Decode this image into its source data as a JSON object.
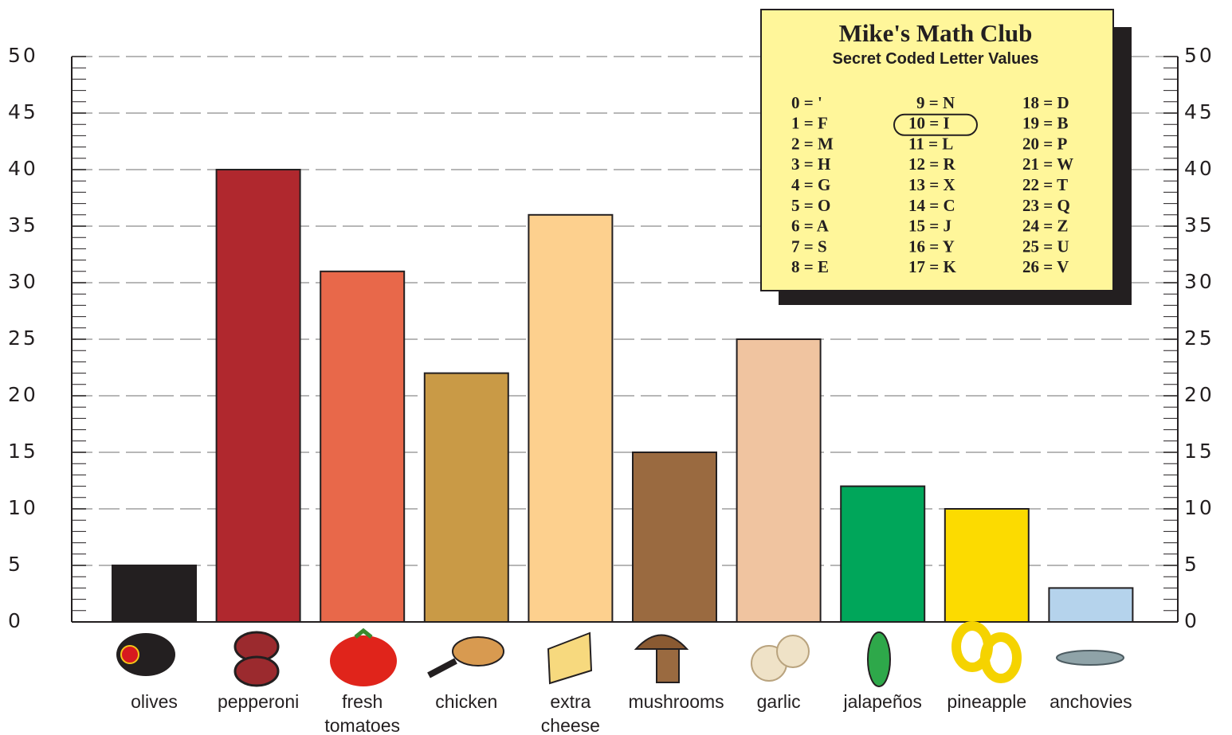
{
  "chart_data": {
    "type": "bar",
    "categories": [
      "olives",
      "pepperoni",
      "fresh tomatoes",
      "chicken",
      "extra cheese",
      "mushrooms",
      "garlic",
      "jalapeños",
      "pineapple",
      "anchovies"
    ],
    "values": [
      5,
      40,
      31,
      22,
      36,
      15,
      25,
      12,
      10,
      3
    ],
    "colors": [
      "#231f20",
      "#b0282e",
      "#e8684a",
      "#c99a46",
      "#fdd08e",
      "#9a6a40",
      "#f0c4a0",
      "#00a65a",
      "#fcdb00",
      "#b5d3ec"
    ],
    "ylim": [
      0,
      50
    ],
    "yticks": [
      0,
      5,
      10,
      15,
      20,
      25,
      30,
      35,
      40,
      45,
      50
    ],
    "grid": true,
    "key": {
      "title": "Mike's Math Club",
      "subtitle": "Secret Coded Letter Values",
      "codes": [
        "0 = '",
        "1 = F",
        "2 = M",
        "3 = H",
        "4 = G",
        "5 = O",
        "6 = A",
        "7 = S",
        "8 = E",
        "9 = N",
        "10 = I",
        "11 = L",
        "12 = R",
        "13 = X",
        "14 = C",
        "15 = J",
        "16 = Y",
        "17 = K",
        "18 = D",
        "19 = B",
        "20 = P",
        "21 = W",
        "22 = T",
        "23 = Q",
        "24 = Z",
        "25 = U",
        "26 = V"
      ],
      "highlight_index": 10
    }
  }
}
